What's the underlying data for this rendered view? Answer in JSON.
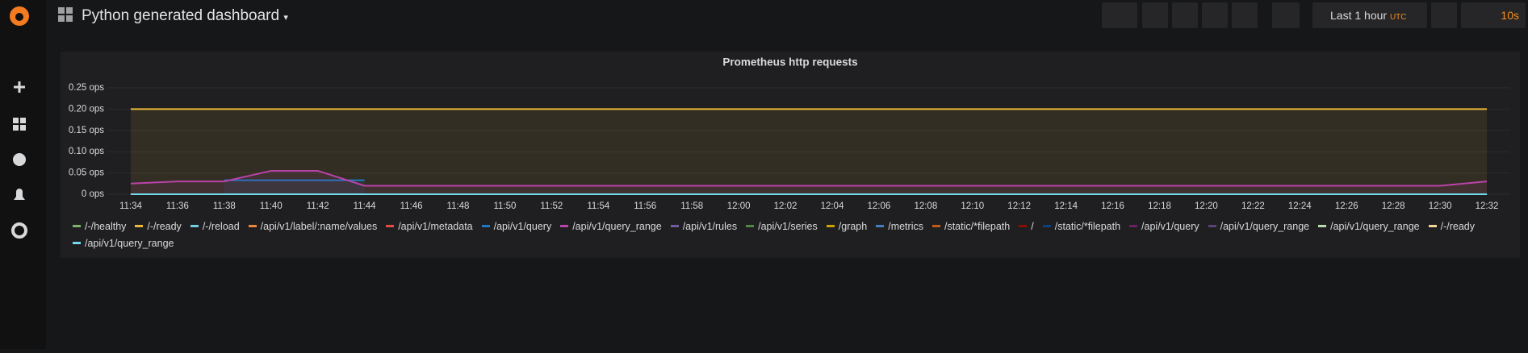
{
  "header": {
    "title": "Python generated dashboard",
    "time_range": "Last 1 hour",
    "timezone": "UTC",
    "refresh": "10s"
  },
  "chart_data": {
    "type": "line",
    "title": "Prometheus http requests",
    "categories": [
      "11:34",
      "11:36",
      "11:38",
      "11:40",
      "11:42",
      "11:44",
      "11:46",
      "11:48",
      "11:50",
      "11:52",
      "11:54",
      "11:56",
      "11:58",
      "12:00",
      "12:02",
      "12:04",
      "12:06",
      "12:08",
      "12:10",
      "12:12",
      "12:14",
      "12:16",
      "12:18",
      "12:20",
      "12:22",
      "12:24",
      "12:26",
      "12:28",
      "12:30",
      "12:32"
    ],
    "ylim": [
      0,
      0.25
    ],
    "yticks": [
      {
        "value": 0,
        "label": "0 ops"
      },
      {
        "value": 0.05,
        "label": "0.05 ops"
      },
      {
        "value": 0.1,
        "label": "0.10 ops"
      },
      {
        "value": 0.15,
        "label": "0.15 ops"
      },
      {
        "value": 0.2,
        "label": "0.20 ops"
      },
      {
        "value": 0.25,
        "label": "0.25 ops"
      }
    ],
    "grid": true,
    "series": [
      {
        "name": "/-/healthy",
        "color": "#7eb26d",
        "values": [
          0,
          0,
          0,
          0,
          0,
          0,
          0,
          0,
          0,
          0,
          0,
          0,
          0,
          0,
          0,
          0,
          0,
          0,
          0,
          0,
          0,
          0,
          0,
          0,
          0,
          0,
          0,
          0,
          0,
          0
        ]
      },
      {
        "name": "/-/ready",
        "color": "#eab839",
        "values": [
          0.2,
          0.2,
          0.2,
          0.2,
          0.2,
          0.2,
          0.2,
          0.2,
          0.2,
          0.2,
          0.2,
          0.2,
          0.2,
          0.2,
          0.2,
          0.2,
          0.2,
          0.2,
          0.2,
          0.2,
          0.2,
          0.2,
          0.2,
          0.2,
          0.2,
          0.2,
          0.2,
          0.2,
          0.2,
          0.2
        ]
      },
      {
        "name": "/-/reload",
        "color": "#6ed0e0",
        "values": [
          0,
          0,
          0,
          0,
          0,
          0,
          0,
          0,
          0,
          0,
          0,
          0,
          0,
          0,
          0,
          0,
          0,
          0,
          0,
          0,
          0,
          0,
          0,
          0,
          0,
          0,
          0,
          0,
          0,
          0
        ]
      },
      {
        "name": "/api/v1/label/:name/values",
        "color": "#ef843c",
        "values": [
          0,
          0,
          0,
          0,
          0,
          0,
          0,
          0,
          0,
          0,
          0,
          0,
          0,
          0,
          0,
          0,
          0,
          0,
          0,
          0,
          0,
          0,
          0,
          0,
          0,
          0,
          0,
          0,
          0,
          0
        ]
      },
      {
        "name": "/api/v1/metadata",
        "color": "#e24d42",
        "values": [
          0,
          0,
          0,
          0,
          0,
          0,
          0,
          0,
          0,
          0,
          0,
          0,
          0,
          0,
          0,
          0,
          0,
          0,
          0,
          0,
          0,
          0,
          0,
          0,
          0,
          0,
          0,
          0,
          0,
          0
        ]
      },
      {
        "name": "/api/v1/query",
        "color": "#1f78c1",
        "values": [
          null,
          null,
          0.033,
          0.033,
          0.033,
          0.033,
          null,
          null,
          null,
          null,
          null,
          null,
          null,
          null,
          null,
          null,
          null,
          null,
          null,
          null,
          null,
          null,
          null,
          null,
          null,
          null,
          null,
          null,
          null,
          null
        ]
      },
      {
        "name": "/api/v1/query_range",
        "color": "#ba43a9",
        "values": [
          0.025,
          0.03,
          0.03,
          0.055,
          0.055,
          0.02,
          0.02,
          0.02,
          0.02,
          0.02,
          0.02,
          0.02,
          0.02,
          0.02,
          0.02,
          0.02,
          0.02,
          0.02,
          0.02,
          0.02,
          0.02,
          0.02,
          0.02,
          0.02,
          0.02,
          0.02,
          0.02,
          0.02,
          0.02,
          0.03
        ]
      },
      {
        "name": "/api/v1/rules",
        "color": "#705da0",
        "values": [
          0,
          0,
          0,
          0,
          0,
          0,
          0,
          0,
          0,
          0,
          0,
          0,
          0,
          0,
          0,
          0,
          0,
          0,
          0,
          0,
          0,
          0,
          0,
          0,
          0,
          0,
          0,
          0,
          0,
          0
        ]
      },
      {
        "name": "/api/v1/series",
        "color": "#508642",
        "values": [
          0,
          0,
          0,
          0,
          0,
          0,
          0,
          0,
          0,
          0,
          0,
          0,
          0,
          0,
          0,
          0,
          0,
          0,
          0,
          0,
          0,
          0,
          0,
          0,
          0,
          0,
          0,
          0,
          0,
          0
        ]
      },
      {
        "name": "/graph",
        "color": "#cca300",
        "values": [
          0,
          0,
          0,
          0,
          0,
          0,
          0,
          0,
          0,
          0,
          0,
          0,
          0,
          0,
          0,
          0,
          0,
          0,
          0,
          0,
          0,
          0,
          0,
          0,
          0,
          0,
          0,
          0,
          0,
          0
        ]
      },
      {
        "name": "/metrics",
        "color": "#447ebc",
        "values": [
          0,
          0,
          0,
          0,
          0,
          0,
          0,
          0,
          0,
          0,
          0,
          0,
          0,
          0,
          0,
          0,
          0,
          0,
          0,
          0,
          0,
          0,
          0,
          0,
          0,
          0,
          0,
          0,
          0,
          0
        ]
      },
      {
        "name": "/static/*filepath",
        "color": "#c15c17",
        "values": [
          0,
          0,
          0,
          0,
          0,
          0,
          0,
          0,
          0,
          0,
          0,
          0,
          0,
          0,
          0,
          0,
          0,
          0,
          0,
          0,
          0,
          0,
          0,
          0,
          0,
          0,
          0,
          0,
          0,
          0
        ]
      },
      {
        "name": "/",
        "color": "#890f02",
        "values": [
          0,
          0,
          0,
          0,
          0,
          0,
          0,
          0,
          0,
          0,
          0,
          0,
          0,
          0,
          0,
          0,
          0,
          0,
          0,
          0,
          0,
          0,
          0,
          0,
          0,
          0,
          0,
          0,
          0,
          0
        ]
      },
      {
        "name": "/static/*filepath",
        "color": "#0a437c",
        "values": [
          0,
          0,
          0,
          0,
          0,
          0,
          0,
          0,
          0,
          0,
          0,
          0,
          0,
          0,
          0,
          0,
          0,
          0,
          0,
          0,
          0,
          0,
          0,
          0,
          0,
          0,
          0,
          0,
          0,
          0
        ]
      },
      {
        "name": "/api/v1/query",
        "color": "#6d1f62",
        "values": [
          0,
          0,
          0,
          0,
          0,
          0,
          0,
          0,
          0,
          0,
          0,
          0,
          0,
          0,
          0,
          0,
          0,
          0,
          0,
          0,
          0,
          0,
          0,
          0,
          0,
          0,
          0,
          0,
          0,
          0
        ]
      },
      {
        "name": "/api/v1/query_range",
        "color": "#584477",
        "values": [
          0,
          0,
          0,
          0,
          0,
          0,
          0,
          0,
          0,
          0,
          0,
          0,
          0,
          0,
          0,
          0,
          0,
          0,
          0,
          0,
          0,
          0,
          0,
          0,
          0,
          0,
          0,
          0,
          0,
          0
        ]
      },
      {
        "name": "/api/v1/query_range",
        "color": "#b7dbab",
        "values": [
          0,
          0,
          0,
          0,
          0,
          0,
          0,
          0,
          0,
          0,
          0,
          0,
          0,
          0,
          0,
          0,
          0,
          0,
          0,
          0,
          0,
          0,
          0,
          0,
          0,
          0,
          0,
          0,
          0,
          0
        ]
      },
      {
        "name": "/-/ready",
        "color": "#f4d598",
        "values": [
          0,
          0,
          0,
          0,
          0,
          0,
          0,
          0,
          0,
          0,
          0,
          0,
          0,
          0,
          0,
          0,
          0,
          0,
          0,
          0,
          0,
          0,
          0,
          0,
          0,
          0,
          0,
          0,
          0,
          0
        ]
      },
      {
        "name": "/api/v1/query_range",
        "color": "#70dbed",
        "values": [
          0,
          0,
          0,
          0,
          0,
          0,
          0,
          0,
          0,
          0,
          0,
          0,
          0,
          0,
          0,
          0,
          0,
          0,
          0,
          0,
          0,
          0,
          0,
          0,
          0,
          0,
          0,
          0,
          0,
          0
        ]
      }
    ]
  }
}
